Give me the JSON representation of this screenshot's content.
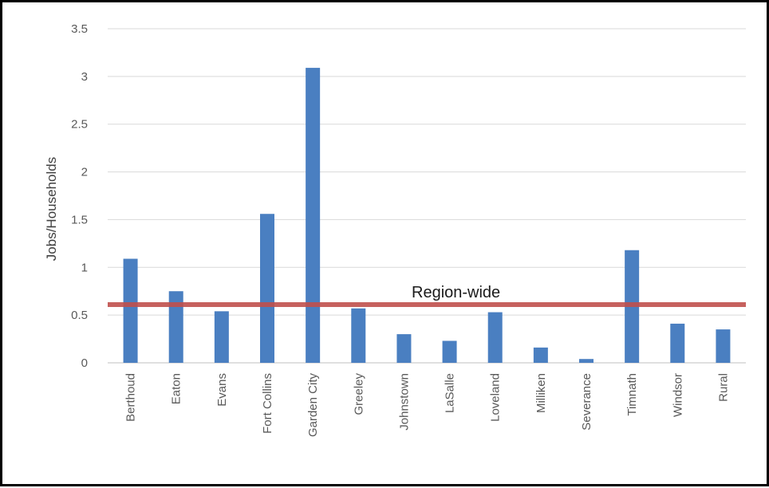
{
  "chart_data": {
    "type": "bar",
    "title": "",
    "xlabel": "",
    "ylabel": "Jobs/Households",
    "ylim": [
      0,
      3.5
    ],
    "yticks": [
      0,
      0.5,
      1,
      1.5,
      2,
      2.5,
      3,
      3.5
    ],
    "ytick_labels": [
      "0",
      "0.5",
      "1",
      "1.5",
      "2",
      "2.5",
      "3",
      "3.5"
    ],
    "grid": true,
    "categories": [
      "Berthoud",
      "Eaton",
      "Evans",
      "Fort Collins",
      "Garden City",
      "Greeley",
      "Johnstown",
      "LaSalle",
      "Loveland",
      "Milliken",
      "Severance",
      "Timnath",
      "Windsor",
      "Rural"
    ],
    "values": [
      1.09,
      0.75,
      0.54,
      1.56,
      3.09,
      0.57,
      0.3,
      0.23,
      0.53,
      0.16,
      0.04,
      1.18,
      0.41,
      0.35
    ],
    "bar_color": "#4a7fc1",
    "reference_line": {
      "label": "Region-wide",
      "value": 0.61,
      "color": "#c0504d"
    }
  }
}
